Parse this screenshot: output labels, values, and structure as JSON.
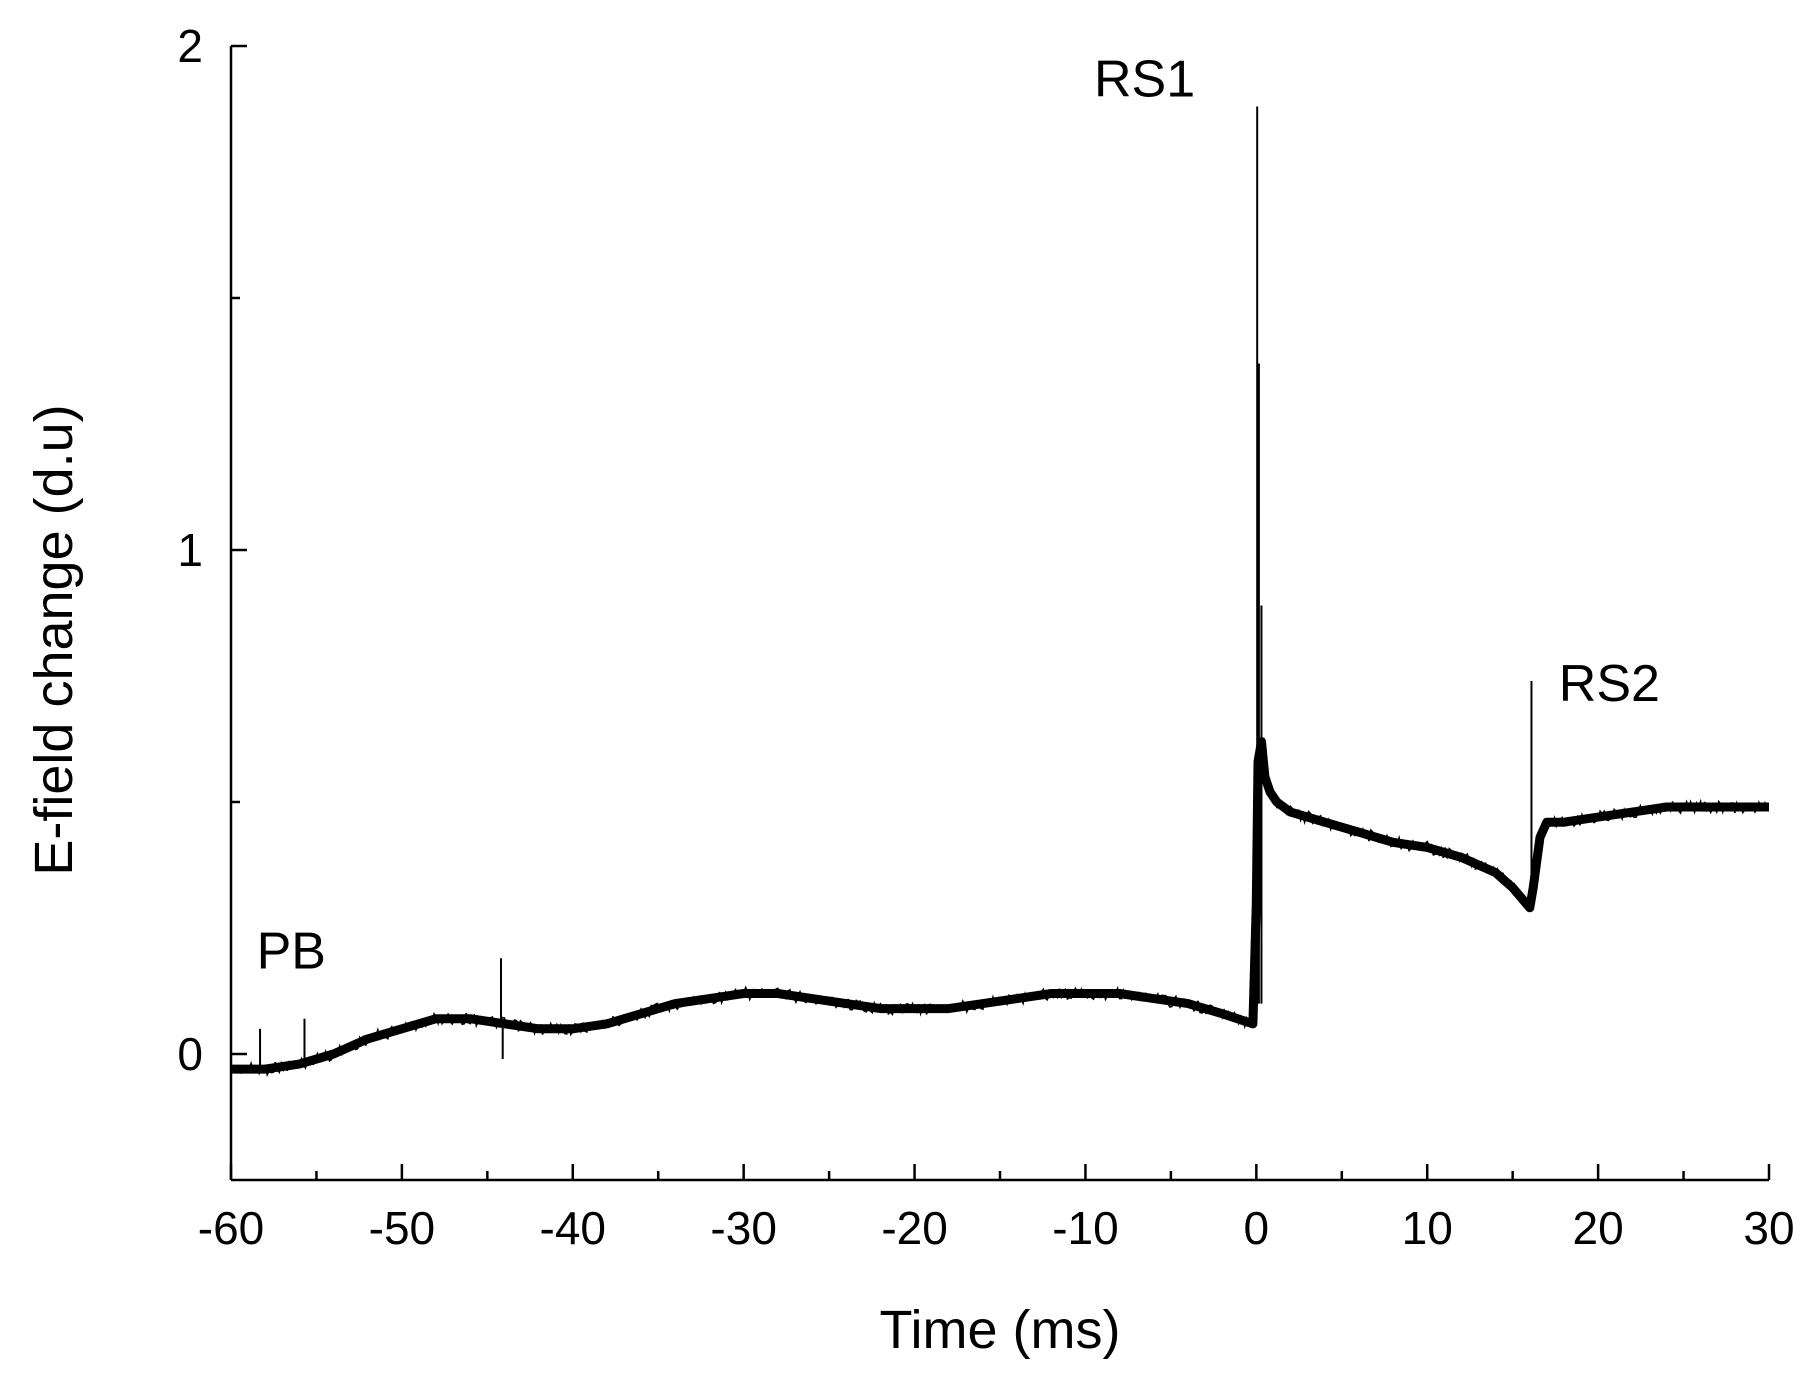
{
  "chart_data": {
    "type": "line",
    "title": "",
    "xlabel": "Time (ms)",
    "ylabel": "E-field change (d.u)",
    "xlim": [
      -60,
      30
    ],
    "ylim": [
      -0.25,
      2
    ],
    "x_major_ticks": [
      -60,
      -50,
      -40,
      -30,
      -20,
      -10,
      0,
      10,
      20,
      30
    ],
    "x_tick_labels": [
      "-60",
      "-50",
      "-40",
      "-30",
      "-20",
      "-10",
      "0",
      "10",
      "20",
      "30"
    ],
    "x_minor_step": 5,
    "y_major_ticks": [
      0,
      1,
      2
    ],
    "y_tick_labels": [
      "0",
      "1",
      "2"
    ],
    "y_minor_step": 0.5,
    "grid": false,
    "series": [
      {
        "name": "E-field change",
        "color": "#000000",
        "x": [
          -60,
          -58,
          -56,
          -54,
          -52,
          -50,
          -48,
          -46,
          -44,
          -42,
          -40,
          -38,
          -36,
          -34,
          -32,
          -30,
          -28,
          -26,
          -24,
          -22,
          -20,
          -18,
          -16,
          -14,
          -12,
          -10,
          -8,
          -6,
          -4,
          -2,
          -0.2,
          0,
          0.1,
          0.3,
          0.5,
          0.8,
          1.2,
          2,
          4,
          6,
          8,
          10,
          12,
          14,
          15,
          16,
          16.2,
          16.6,
          17,
          18,
          20,
          22,
          24,
          26,
          28,
          30
        ],
        "y": [
          -0.03,
          -0.03,
          -0.02,
          0.0,
          0.03,
          0.05,
          0.07,
          0.07,
          0.06,
          0.05,
          0.05,
          0.06,
          0.08,
          0.1,
          0.11,
          0.12,
          0.12,
          0.11,
          0.1,
          0.09,
          0.09,
          0.09,
          0.1,
          0.11,
          0.12,
          0.12,
          0.12,
          0.11,
          0.1,
          0.08,
          0.06,
          0.3,
          0.58,
          0.62,
          0.55,
          0.52,
          0.5,
          0.48,
          0.46,
          0.44,
          0.42,
          0.41,
          0.39,
          0.36,
          0.33,
          0.29,
          0.33,
          0.43,
          0.46,
          0.46,
          0.47,
          0.48,
          0.49,
          0.49,
          0.49,
          0.49
        ]
      }
    ],
    "spikes": [
      {
        "x": -58.3,
        "y": 0.05
      },
      {
        "x": -55.7,
        "y": 0.07
      },
      {
        "x": -44.2,
        "y": 0.19
      },
      {
        "x": -44.1,
        "y": -0.01
      },
      {
        "x": 0.05,
        "y": 1.88
      },
      {
        "x": 0.15,
        "y": 1.37
      },
      {
        "x": 0.3,
        "y": 0.89
      },
      {
        "x": 16.1,
        "y": 0.74
      }
    ],
    "annotations": [
      {
        "text": "PB",
        "x": -58.5,
        "y": 0.17
      },
      {
        "text": "RS1",
        "x": -9.5,
        "y": 1.9
      },
      {
        "text": "RS2",
        "x": 17.7,
        "y": 0.7
      }
    ]
  }
}
